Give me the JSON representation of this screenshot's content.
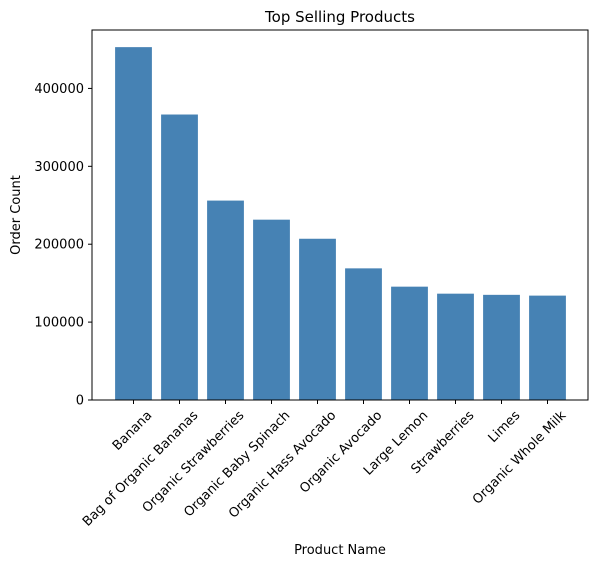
{
  "chart_data": {
    "type": "bar",
    "title": "Top Selling Products",
    "xlabel": "Product Name",
    "ylabel": "Order Count",
    "categories": [
      "Banana",
      "Bag of Organic Bananas",
      "Organic Strawberries",
      "Organic Baby Spinach",
      "Organic Hass Avocado",
      "Organic Avocado",
      "Large Lemon",
      "Strawberries",
      "Limes",
      "Organic Whole Milk"
    ],
    "values": [
      453000,
      366500,
      256000,
      231500,
      207000,
      169000,
      145500,
      136500,
      135000,
      134000
    ],
    "ylim": [
      0,
      475000
    ],
    "yticks": [
      0,
      100000,
      200000,
      300000,
      400000
    ],
    "ytick_labels": [
      "0",
      "100000",
      "200000",
      "300000",
      "400000"
    ],
    "bar_color": "#4682b4",
    "grid": false,
    "legend": "none"
  }
}
